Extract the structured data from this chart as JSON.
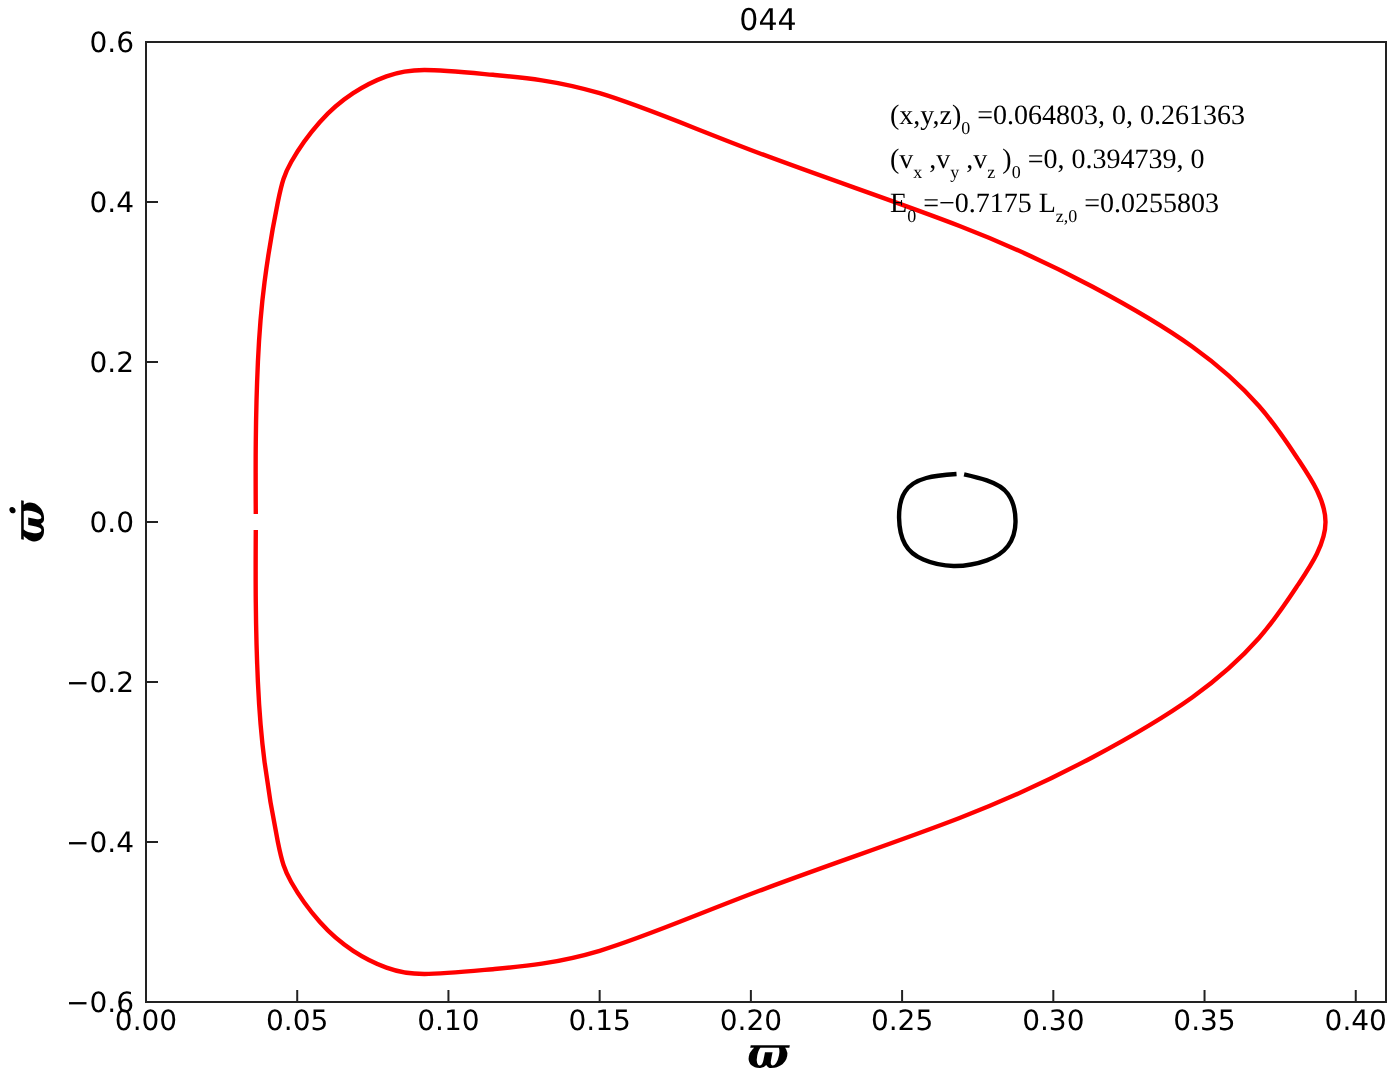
{
  "chart_data": {
    "type": "line",
    "title": "044",
    "xlabel": "ϖ",
    "ylabel": "ϖ̇",
    "annotations": [
      "(x,y,z)$_{0}$ =0.064803, 0, 0.261363",
      "(v$_{x}$,v$_{y}$,v$_{z}$)$_{0}$ =0, 0.394739, 0",
      "E$_{0}$ =−0.7175  L$_{z,0}$=0.0255803"
    ],
    "xlim": [
      0,
      0.41
    ],
    "xticks": [
      {
        "value": 0,
        "label": "0.00"
      },
      {
        "value": 0.05,
        "label": "0.05"
      },
      {
        "value": 0.1,
        "label": "0.10"
      },
      {
        "value": 0.15,
        "label": "0.15"
      },
      {
        "value": 0.2,
        "label": "0.20"
      },
      {
        "value": 0.25,
        "label": "0.25"
      },
      {
        "value": 0.3,
        "label": "0.30"
      },
      {
        "value": 0.35,
        "label": "0.35"
      },
      {
        "value": 0.4,
        "label": "0.40"
      }
    ],
    "ylim": [
      -0.6,
      0.6
    ],
    "yticks": [
      {
        "value": -0.6,
        "label": "−0.6"
      },
      {
        "value": -0.4,
        "label": "−0.4"
      },
      {
        "value": -0.2,
        "label": "−0.2"
      },
      {
        "value": 0,
        "label": "0.0"
      },
      0.2,
      0.4,
      0.6
    ],
    "grid": false,
    "legend": false,
    "marker": "none",
    "line_style": "solid",
    "series": [
      {
        "color": "#ff0000",
        "x": [
          0.0363,
          0.0363,
          0.037,
          0.0392,
          0.0436,
          0.048,
          0.0575,
          0.0685,
          0.0795,
          0.092,
          0.1147,
          0.15,
          0.2028,
          0.269,
          0.313,
          0.346,
          0.368,
          0.381,
          0.39,
          0.381,
          0.368,
          0.346,
          0.313,
          0.269,
          0.2028,
          0.15,
          0.1147,
          0.092,
          0.0795,
          0.0685,
          0.0575,
          0.048,
          0.0436,
          0.0392,
          0.037,
          0.0363,
          0.0363
        ],
        "values": [
          0.01,
          0.1,
          0.2,
          0.3,
          0.4,
          0.45,
          0.5,
          0.536,
          0.557,
          0.565,
          0.559,
          0.536,
          0.461,
          0.37,
          0.294,
          0.219,
          0.145,
          0.078,
          0,
          -0.078,
          -0.145,
          -0.219,
          -0.294,
          -0.37,
          -0.461,
          -0.536,
          -0.559,
          -0.565,
          -0.557,
          -0.536,
          -0.5,
          -0.45,
          -0.4,
          -0.3,
          -0.2,
          -0.1,
          -0.01
        ]
      },
      {
        "color": "#000000",
        "x": [
          0.268,
          0.258,
          0.251,
          0.249,
          0.251,
          0.257,
          0.267,
          0.278,
          0.285,
          0.2875,
          0.285,
          0.278,
          0.2705
        ],
        "values": [
          0.06,
          0.055,
          0.038,
          0.005,
          -0.028,
          -0.047,
          -0.055,
          -0.048,
          -0.03,
          0.0,
          0.035,
          0.052,
          0.0595
        ]
      }
    ]
  }
}
